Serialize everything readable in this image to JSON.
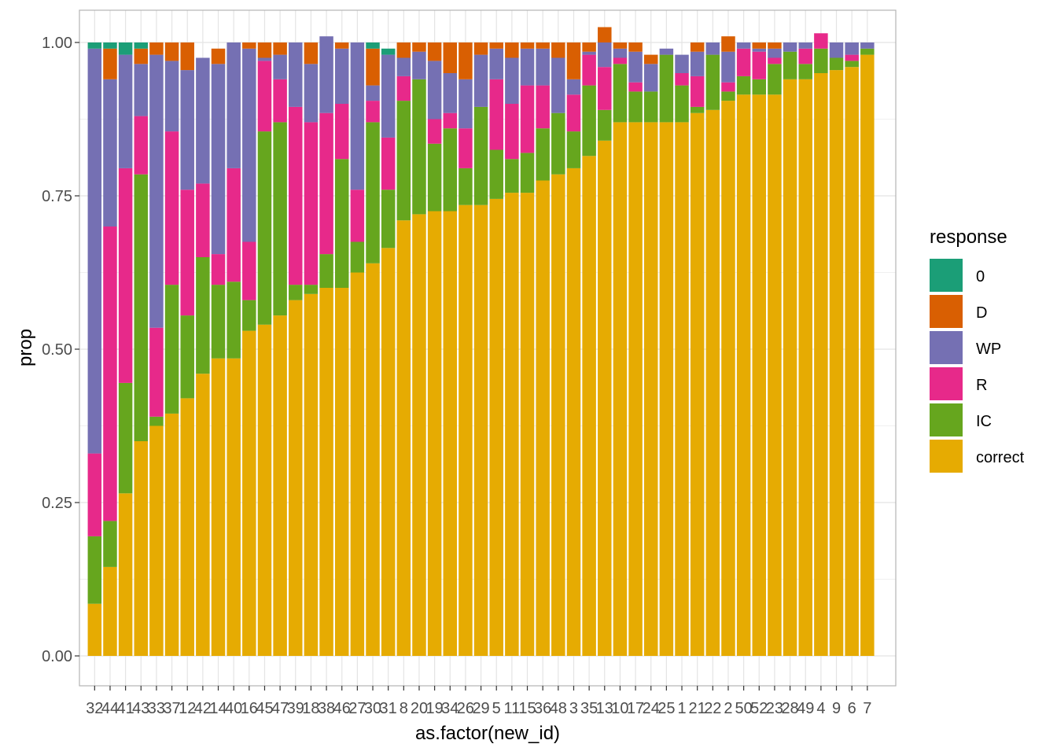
{
  "chart_data": {
    "type": "bar",
    "stacked": true,
    "xlabel": "as.factor(new_id)",
    "ylabel": "prop",
    "ylim": [
      0,
      1
    ],
    "y_ticks": [
      "0.00",
      "0.25",
      "0.50",
      "0.75",
      "1.00"
    ],
    "grid": true,
    "legend_title": "response",
    "legend_position": "right",
    "categories": [
      "32",
      "44",
      "41",
      "43",
      "33",
      "37",
      "12",
      "42",
      "14",
      "40",
      "16",
      "45",
      "47",
      "39",
      "18",
      "38",
      "46",
      "27",
      "30",
      "31",
      "8",
      "20",
      "19",
      "34",
      "26",
      "29",
      "5",
      "11",
      "15",
      "36",
      "48",
      "3",
      "35",
      "13",
      "10",
      "17",
      "24",
      "25",
      "1",
      "21",
      "22",
      "2",
      "50",
      "52",
      "23",
      "28",
      "49",
      "4",
      "9",
      "6",
      "7"
    ],
    "tick_labels": [
      "32",
      "44",
      "41",
      "43",
      "33",
      "37",
      "12",
      "42",
      "14",
      "40",
      "16",
      "45",
      "47",
      "39",
      "18",
      "38",
      "46",
      "27",
      "30",
      "31",
      "8",
      "20",
      "19",
      "34",
      "26",
      "29",
      "5",
      "11",
      "15",
      "36",
      "48",
      "3",
      "35",
      "13",
      "10",
      "17",
      "24",
      "25",
      "1",
      "21",
      "22",
      "2",
      "50",
      "52",
      "23",
      "28",
      "49",
      "4",
      "9",
      "6",
      "7"
    ],
    "series": [
      {
        "name": "correct",
        "color": "#E6AB02",
        "values": [
          0.085,
          0.145,
          0.265,
          0.35,
          0.375,
          0.395,
          0.42,
          0.46,
          0.485,
          0.485,
          0.53,
          0.54,
          0.555,
          0.58,
          0.59,
          0.6,
          0.6,
          0.625,
          0.64,
          0.665,
          0.71,
          0.72,
          0.725,
          0.725,
          0.735,
          0.735,
          0.745,
          0.755,
          0.755,
          0.775,
          0.785,
          0.795,
          0.815,
          0.84,
          0.87,
          0.87,
          0.87,
          0.87,
          0.87,
          0.885,
          0.89,
          0.905,
          0.915,
          0.915,
          0.915,
          0.94,
          0.94,
          0.95,
          0.955,
          0.96,
          0.98
        ]
      },
      {
        "name": "IC",
        "color": "#66A61E",
        "values": [
          0.11,
          0.075,
          0.18,
          0.435,
          0.015,
          0.21,
          0.135,
          0.19,
          0.12,
          0.125,
          0.05,
          0.315,
          0.315,
          0.025,
          0.015,
          0.055,
          0.21,
          0.05,
          0.23,
          0.095,
          0.195,
          0.22,
          0.11,
          0.135,
          0.06,
          0.16,
          0.08,
          0.055,
          0.065,
          0.085,
          0.1,
          0.06,
          0.115,
          0.05,
          0.095,
          0.05,
          0.05,
          0.11,
          0.06,
          0.01,
          0.09,
          0.015,
          0.03,
          0.025,
          0.05,
          0.045,
          0.025,
          0.04,
          0.02,
          0.01,
          0.01
        ]
      },
      {
        "name": "R",
        "color": "#E7298A",
        "values": [
          0.135,
          0.48,
          0.35,
          0.095,
          0.145,
          0.25,
          0.205,
          0.12,
          0.05,
          0.185,
          0.095,
          0.115,
          0.07,
          0.29,
          0.265,
          0.23,
          0.09,
          0.085,
          0.035,
          0.085,
          0.04,
          0,
          0.04,
          0.025,
          0.065,
          0,
          0.115,
          0.09,
          0.11,
          0.07,
          0,
          0.06,
          0.05,
          0.07,
          0.01,
          0.015,
          0,
          0,
          0.02,
          0.05,
          0,
          0.015,
          0.045,
          0.045,
          0.01,
          0,
          0.025,
          0.025,
          0,
          0.01,
          0
        ]
      },
      {
        "name": "WP",
        "color": "#7570B3",
        "values": [
          0.66,
          0.24,
          0.185,
          0.085,
          0.445,
          0.115,
          0.195,
          0.205,
          0.31,
          0.205,
          0.315,
          0.005,
          0.04,
          0.105,
          0.095,
          0.125,
          0.09,
          0.24,
          0.025,
          0.135,
          0.03,
          0.045,
          0.095,
          0.065,
          0.08,
          0.085,
          0.05,
          0.075,
          0.06,
          0.06,
          0.09,
          0.025,
          0.005,
          0.04,
          0.015,
          0.05,
          0.045,
          0.01,
          0.03,
          0.04,
          0.02,
          0.05,
          0.01,
          0.005,
          0.015,
          0.015,
          0.01,
          0,
          0.025,
          0.02,
          0.01
        ]
      },
      {
        "name": "D",
        "color": "#D95F02",
        "values": [
          0,
          0.05,
          0,
          0.025,
          0.02,
          0.03,
          0.045,
          0,
          0.025,
          0,
          0.01,
          0.025,
          0.02,
          0,
          0.035,
          0,
          0.01,
          0,
          0.06,
          0,
          0.025,
          0.015,
          0.03,
          0.05,
          0.06,
          0.02,
          0.01,
          0.025,
          0.01,
          0.01,
          0.025,
          0.06,
          0.015,
          0.025,
          0.01,
          0.015,
          0.015,
          0,
          0,
          0.015,
          0,
          0.025,
          0,
          0.01,
          0.01,
          0,
          0,
          0,
          0,
          0,
          0
        ]
      },
      {
        "name": "0",
        "color": "#1B9E77",
        "values": [
          0.01,
          0.01,
          0.02,
          0.01,
          0,
          0,
          0,
          0,
          0,
          0,
          0,
          0,
          0,
          0,
          0,
          0,
          0,
          0,
          0.01,
          0.01,
          0,
          0,
          0,
          0,
          0,
          0,
          0,
          0,
          0,
          0,
          0,
          0,
          0,
          0,
          0,
          0,
          0,
          0,
          0,
          0,
          0,
          0,
          0,
          0,
          0,
          0,
          0,
          0,
          0,
          0,
          0
        ]
      }
    ],
    "legend_order": [
      "0",
      "D",
      "WP",
      "R",
      "IC",
      "correct"
    ]
  }
}
